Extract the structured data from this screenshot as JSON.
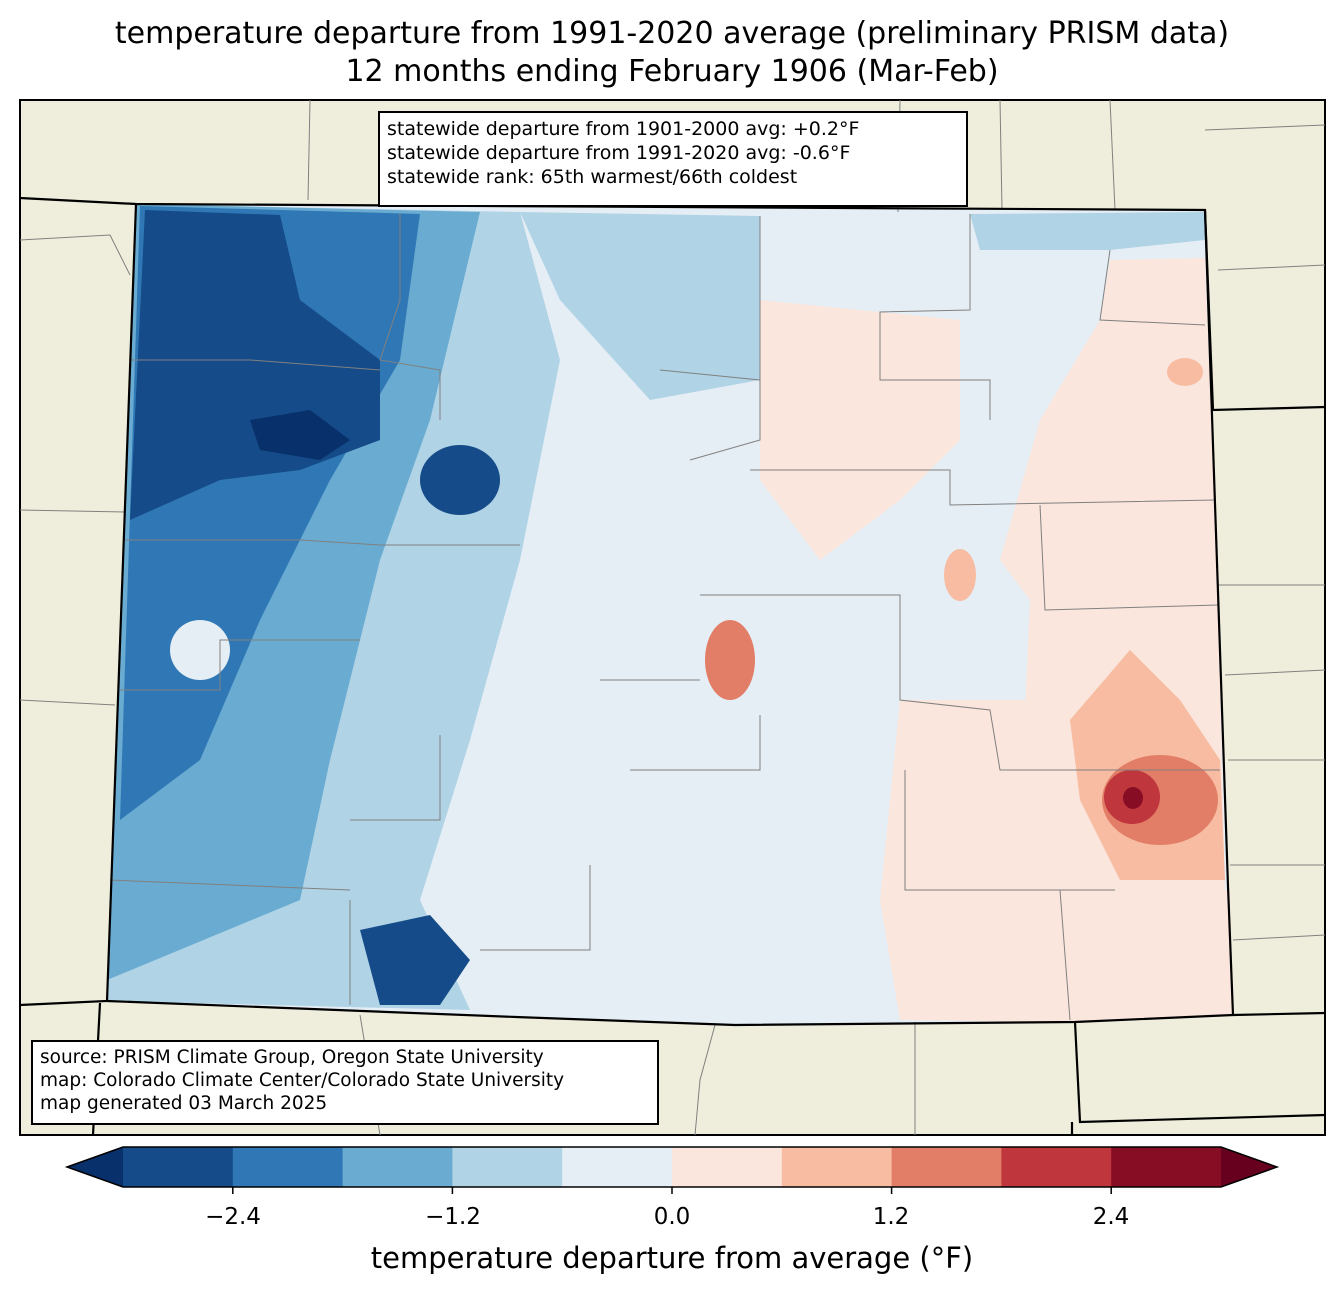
{
  "title": {
    "line1": "temperature departure from 1991-2020 average (preliminary PRISM data)",
    "line2": "12 months ending February 1906 (Mar-Feb)"
  },
  "stats": {
    "line1": "statewide departure from 1901-2000 avg: +0.2°F",
    "line2": "statewide departure from 1991-2020 avg: -0.6°F",
    "line3": "statewide rank: 65th warmest/66th coldest"
  },
  "source": {
    "line1": "source: PRISM Climate Group, Oregon State University",
    "line2": "map: Colorado Climate Center/Colorado State University",
    "line3": "map generated 03 March 2025"
  },
  "colorbar": {
    "label": "temperature departure from average (°F)",
    "ticks": [
      "−2.4",
      "−1.2",
      "0.0",
      "1.2",
      "2.4"
    ],
    "bin_edges": [
      -3.0,
      -2.4,
      -1.8,
      -1.2,
      -0.6,
      0.0,
      0.6,
      1.2,
      1.8,
      2.4,
      3.0
    ],
    "colors": [
      "#144b88",
      "#2f78b5",
      "#6aabd1",
      "#b0d4e6",
      "#e6eef5",
      "#fae6dc",
      "#f7bca1",
      "#e27e67",
      "#c0363d",
      "#870d24"
    ],
    "under_color": "#08306b",
    "over_color": "#67001f",
    "land_color": "#efeedc"
  },
  "regions": {
    "northwest": "much below average",
    "west": "below average",
    "east": "near to slightly above average",
    "southeast_max": "above average"
  }
}
